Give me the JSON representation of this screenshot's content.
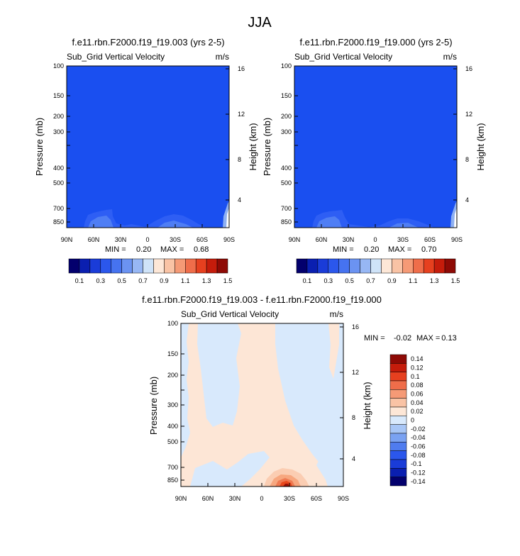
{
  "page": {
    "title": "JJA"
  },
  "colors": {
    "field_blue": "#1a4ff0",
    "neg_light": "#d8e9fc",
    "pos_light": "#fde6d6",
    "pos_mid": "#f7a77f",
    "pos_strong": "#e8471c",
    "pos_max": "#9b1006"
  },
  "chart_data": [
    {
      "type": "heatmap",
      "title": "f.e11.rbn.F2000.f19_f19.003 (yrs 2-5)",
      "left_label": "Sub_Grid Vertical Velocity",
      "right_label": "m/s",
      "ylabel": "Pressure (mb)",
      "ylabel_right": "Height (km)",
      "x_ticks": [
        "90N",
        "60N",
        "30N",
        "0",
        "30S",
        "60S",
        "90S"
      ],
      "y_ticks": [
        "100",
        "150",
        "200",
        "300",
        "400",
        "500",
        "700",
        "850"
      ],
      "height_ticks": [
        "16",
        "12",
        "8",
        "4"
      ],
      "ylim": [
        100,
        925
      ],
      "min_label": "MIN =",
      "min_value": "0.20",
      "max_label": "MAX =",
      "max_value": "0.68"
    },
    {
      "type": "heatmap",
      "title": "f.e11.rbn.F2000.f19_f19.000 (yrs 2-5)",
      "left_label": "Sub_Grid Vertical Velocity",
      "right_label": "m/s",
      "ylabel": "Pressure (mb)",
      "ylabel_right": "Height (km)",
      "x_ticks": [
        "90N",
        "60N",
        "30N",
        "0",
        "30S",
        "60S",
        "90S"
      ],
      "y_ticks": [
        "100",
        "150",
        "200",
        "300",
        "400",
        "500",
        "700",
        "850"
      ],
      "height_ticks": [
        "16",
        "12",
        "8",
        "4"
      ],
      "ylim": [
        100,
        925
      ],
      "min_label": "MIN =",
      "min_value": "0.20",
      "max_label": "MAX =",
      "max_value": "0.70"
    },
    {
      "type": "heatmap",
      "title": "f.e11.rbn.F2000.f19_f19.003 - f.e11.rbn.F2000.f19_f19.000",
      "left_label": "Sub_Grid Vertical Velocity",
      "right_label": "m/s",
      "ylabel": "Pressure (mb)",
      "ylabel_right": "Height (km)",
      "x_ticks": [
        "90N",
        "60N",
        "30N",
        "0",
        "30S",
        "60S",
        "90S"
      ],
      "y_ticks": [
        "100",
        "150",
        "200",
        "300",
        "400",
        "500",
        "700",
        "850"
      ],
      "height_ticks": [
        "16",
        "12",
        "8",
        "4"
      ],
      "ylim": [
        100,
        925
      ],
      "min_label": "MIN =",
      "min_value": "-0.02",
      "max_label": "MAX =",
      "max_value": "0.13"
    }
  ],
  "colorbar_abs": {
    "colors": [
      "#03006d",
      "#0a1fb0",
      "#1a3cd8",
      "#2b57ec",
      "#4673f0",
      "#6b93f2",
      "#97b7f4",
      "#cfe3f8",
      "#fde7d7",
      "#f9c3a5",
      "#f59a76",
      "#ef6d4a",
      "#e6401f",
      "#c51c0b",
      "#8e0a05"
    ],
    "labels": [
      "0.1",
      "0.3",
      "0.5",
      "0.7",
      "0.9",
      "1.1",
      "1.3",
      "1.5"
    ]
  },
  "colorbar_diff": {
    "colors": [
      "#8e0a05",
      "#c51c0b",
      "#e6401f",
      "#ef6d4a",
      "#f59a76",
      "#f9c3a5",
      "#fde7d7",
      "#d8e9fc",
      "#a8c6f6",
      "#7aa2f2",
      "#4f7cef",
      "#2b57ec",
      "#1a3cd8",
      "#0a1fb0",
      "#03006d"
    ],
    "labels": [
      "0.14",
      "0.12",
      "0.1",
      "0.08",
      "0.06",
      "0.04",
      "0.02",
      "0",
      "-0.02",
      "-0.04",
      "-0.06",
      "-0.08",
      "-0.1",
      "-0.12",
      "-0.14"
    ]
  }
}
